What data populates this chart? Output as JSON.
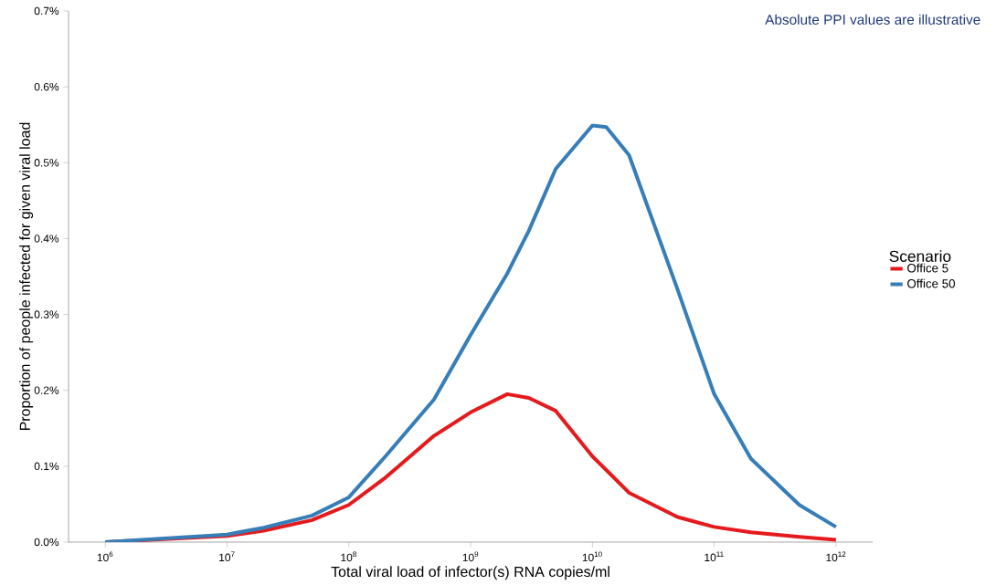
{
  "chart_data": {
    "type": "line",
    "xlabel": "Total viral load of infector(s) RNA copies/ml",
    "ylabel": "Proportion of people infected for given viral load",
    "legend_title": "Scenario",
    "annotations": [
      "Absolute PPI values are illustrative"
    ],
    "log": "x",
    "x": [
      1000000.0,
      10000000.0,
      20000000.0,
      50000000.0,
      100000000.0,
      200000000.0,
      500000000.0,
      1000000000.0,
      2000000000.0,
      3000000000.0,
      5000000000.0,
      10000000000.0,
      13000000000.0,
      20000000000.0,
      50000000000.0,
      100000000000.0,
      200000000000.0,
      500000000000.0,
      1000000000000.0
    ],
    "series": [
      {
        "name": "Office 5",
        "color": "#e41a1c",
        "values": [
          0,
          0.008,
          0.015,
          0.029,
          0.049,
          0.085,
          0.14,
          0.171,
          0.195,
          0.19,
          0.173,
          0.113,
          0.095,
          0.065,
          0.033,
          0.02,
          0.013,
          0.007,
          0.003
        ]
      },
      {
        "name": "Office 50",
        "color": "#377eb8",
        "values": [
          0,
          0.01,
          0.019,
          0.035,
          0.059,
          0.113,
          0.188,
          0.273,
          0.354,
          0.41,
          0.492,
          0.549,
          0.547,
          0.51,
          0.333,
          0.195,
          0.11,
          0.049,
          0.02
        ]
      }
    ],
    "xlim": [
      500000.0,
      2000000000000.0
    ],
    "ylim": [
      0,
      0.7
    ],
    "xticks": [
      {
        "value": 1000000.0,
        "label": "10$^{6}$"
      },
      {
        "value": 10000000.0,
        "label": "10$^{7}$"
      },
      {
        "value": 100000000.0,
        "label": "10$^{8}$"
      },
      {
        "value": 1000000000.0,
        "label": "10$^{9}$"
      },
      {
        "value": 10000000000.0,
        "label": "10$^{10}$"
      },
      {
        "value": 100000000000.0,
        "label": "10$^{11}$"
      },
      {
        "value": 1000000000000.0,
        "label": "10$^{12}$"
      }
    ],
    "yticks": [
      {
        "value": 0,
        "label": "0.0%"
      },
      {
        "value": 0.1,
        "label": "0.1%"
      },
      {
        "value": 0.2,
        "label": "0.2%"
      },
      {
        "value": 0.3,
        "label": "0.3%"
      },
      {
        "value": 0.4,
        "label": "0.4%"
      },
      {
        "value": 0.5,
        "label": "0.5%"
      },
      {
        "value": 0.6,
        "label": "0.6%"
      },
      {
        "value": 0.7,
        "label": "0.7%"
      }
    ],
    "grid": false,
    "legend": "right",
    "marker": "none",
    "line_style": "solid"
  }
}
